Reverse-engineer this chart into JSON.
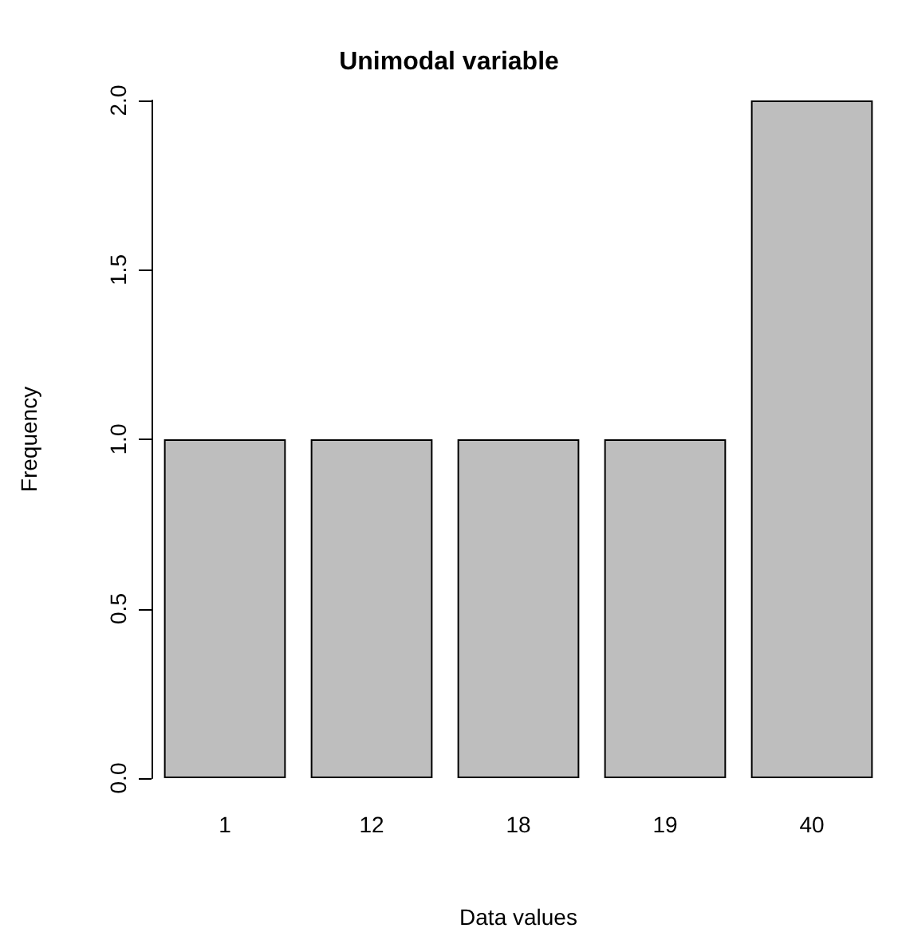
{
  "chart_data": {
    "type": "bar",
    "title": "Unimodal variable",
    "xlabel": "Data values",
    "ylabel": "Frequency",
    "categories": [
      "1",
      "12",
      "18",
      "19",
      "40"
    ],
    "values": [
      1,
      1,
      1,
      1,
      2
    ],
    "color": "#bebebe",
    "ylim": [
      0,
      2
    ],
    "yticks": [
      {
        "value": 0,
        "label": "0.0"
      },
      {
        "value": 0.5,
        "label": "0.5"
      },
      {
        "value": 1,
        "label": "1.0"
      },
      {
        "value": 1.5,
        "label": "1.5"
      },
      {
        "value": 2,
        "label": "2.0"
      }
    ],
    "grid": false
  }
}
